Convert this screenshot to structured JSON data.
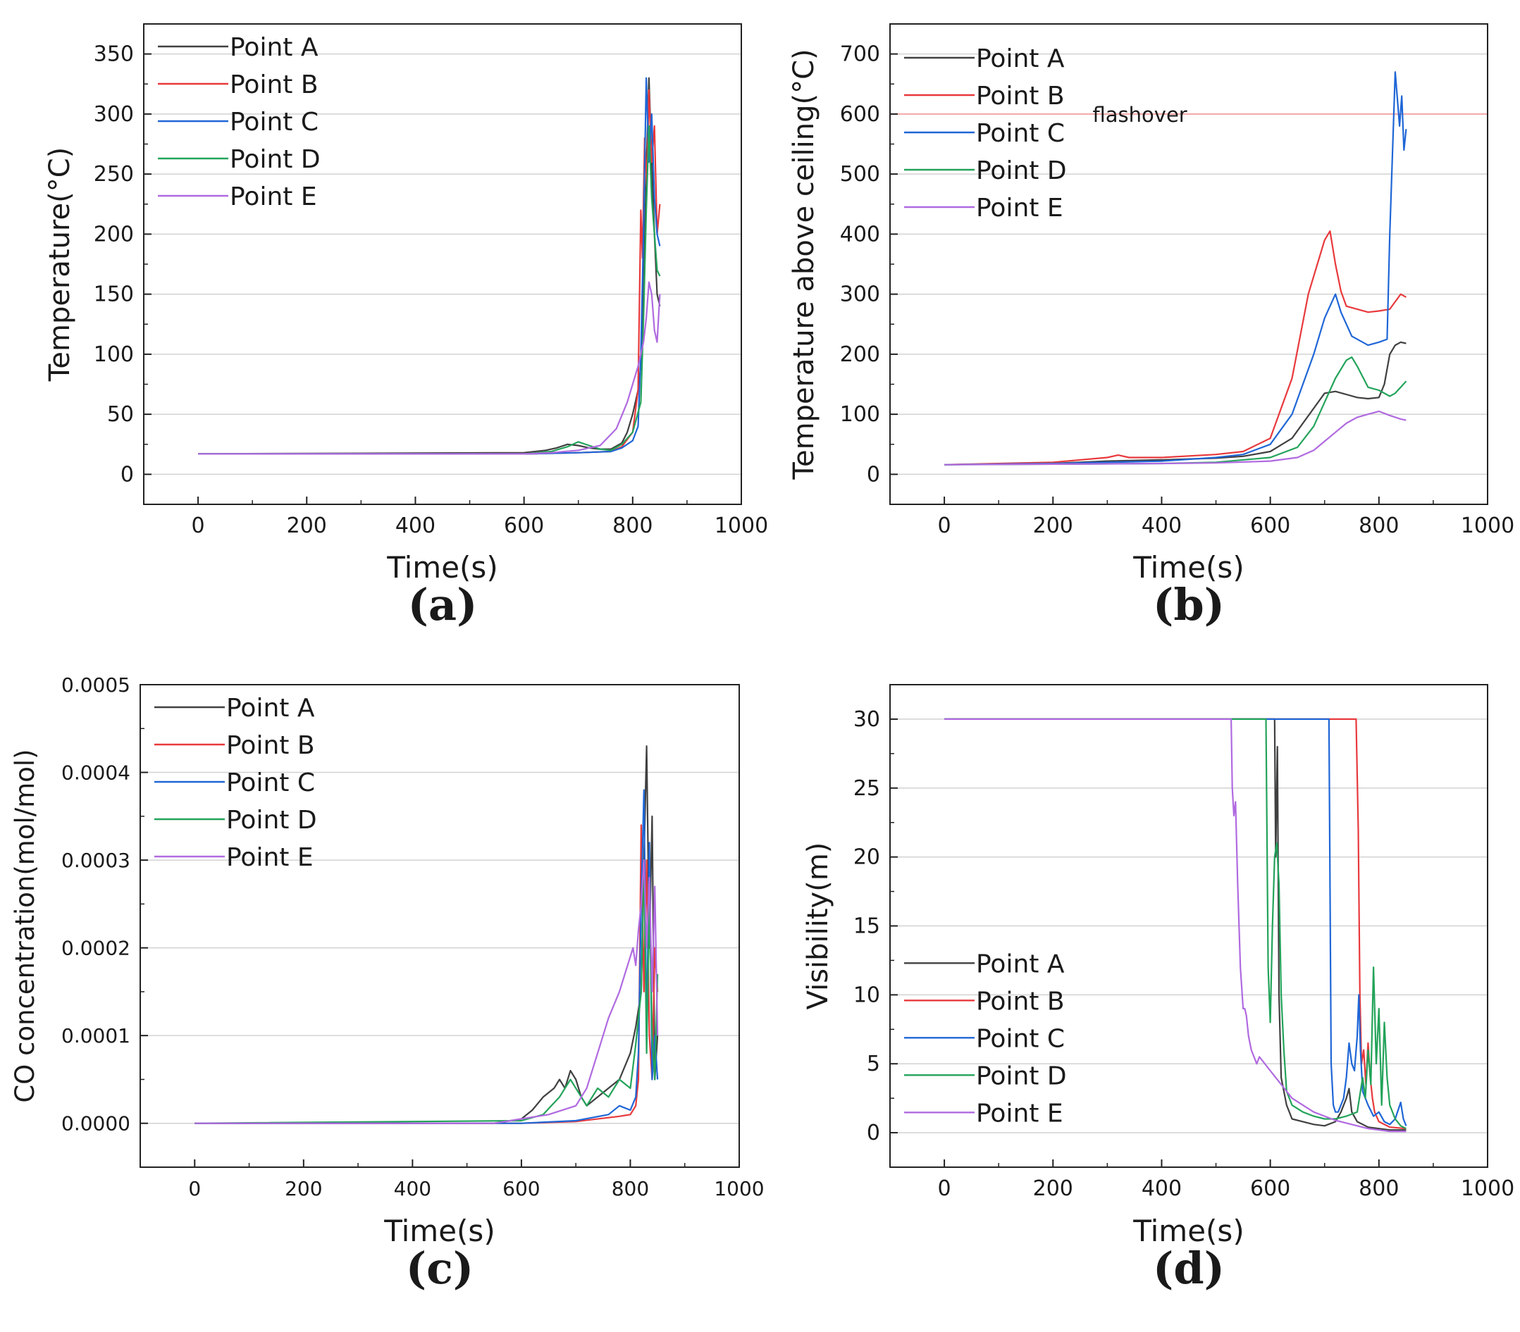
{
  "figure": {
    "colors": {
      "Point A": "#404040",
      "Point B": "#e8393c",
      "Point C": "#1f66d6",
      "Point D": "#23a35a",
      "Point E": "#b06ae0",
      "grid": "#d2d2d2",
      "flashover": "#f4a6a6"
    }
  },
  "chart_data": [
    {
      "id": "a",
      "type": "line",
      "panel_label": "(a)",
      "xlabel": "Time(s)",
      "ylabel": "Temperature(°C)",
      "xlim": [
        -100,
        1000
      ],
      "ylim": [
        -25,
        375
      ],
      "xticks": [
        0,
        200,
        400,
        600,
        800,
        1000
      ],
      "xtick_labels": [
        "0",
        "200",
        "400",
        "600",
        "800",
        "1000"
      ],
      "yticks": [
        0,
        50,
        100,
        150,
        200,
        250,
        300,
        350
      ],
      "ytick_labels": [
        "0",
        "50",
        "100",
        "150",
        "200",
        "250",
        "300",
        "350"
      ],
      "grid": true,
      "legend": "top-left",
      "series": [
        {
          "name": "Point A",
          "x": [
            0,
            600,
            640,
            660,
            680,
            700,
            720,
            740,
            760,
            780,
            790,
            800,
            810,
            815,
            820,
            825,
            830,
            835,
            840,
            845,
            850
          ],
          "y": [
            17,
            18,
            20,
            22,
            25,
            24,
            22,
            21,
            21,
            26,
            35,
            50,
            70,
            90,
            150,
            250,
            330,
            260,
            200,
            150,
            140
          ]
        },
        {
          "name": "Point B",
          "x": [
            0,
            600,
            700,
            760,
            780,
            800,
            810,
            815,
            818,
            822,
            826,
            830,
            835,
            840,
            845,
            850
          ],
          "y": [
            17,
            17,
            18,
            19,
            23,
            35,
            70,
            220,
            180,
            280,
            240,
            320,
            260,
            290,
            200,
            225
          ]
        },
        {
          "name": "Point C",
          "x": [
            0,
            600,
            700,
            760,
            780,
            800,
            810,
            815,
            820,
            825,
            830,
            835,
            840,
            845,
            850
          ],
          "y": [
            17,
            17,
            18,
            19,
            22,
            28,
            40,
            100,
            200,
            330,
            260,
            300,
            230,
            200,
            190
          ]
        },
        {
          "name": "Point D",
          "x": [
            0,
            600,
            650,
            680,
            700,
            720,
            740,
            760,
            780,
            800,
            815,
            820,
            825,
            830,
            835,
            840,
            845,
            850
          ],
          "y": [
            17,
            17,
            19,
            23,
            27,
            24,
            21,
            20,
            25,
            35,
            60,
            130,
            220,
            290,
            230,
            200,
            170,
            165
          ]
        },
        {
          "name": "Point E",
          "x": [
            0,
            600,
            650,
            700,
            740,
            770,
            790,
            810,
            820,
            825,
            830,
            835,
            840,
            845,
            850
          ],
          "y": [
            17,
            17,
            18,
            20,
            24,
            38,
            60,
            90,
            110,
            130,
            160,
            150,
            120,
            110,
            150
          ]
        }
      ]
    },
    {
      "id": "b",
      "type": "line",
      "panel_label": "(b)",
      "xlabel": "Time(s)",
      "ylabel": "Temperature above ceiling(°C)",
      "xlim": [
        -100,
        1000
      ],
      "ylim": [
        -50,
        750
      ],
      "xticks": [
        0,
        200,
        400,
        600,
        800,
        1000
      ],
      "xtick_labels": [
        "0",
        "200",
        "400",
        "600",
        "800",
        "1000"
      ],
      "yticks": [
        0,
        100,
        200,
        300,
        400,
        500,
        600,
        700
      ],
      "ytick_labels": [
        "0",
        "100",
        "200",
        "300",
        "400",
        "500",
        "600",
        "700"
      ],
      "grid": true,
      "legend": "top-left",
      "reference_line": {
        "y": 600,
        "label": "flashover"
      },
      "series": [
        {
          "name": "Point A",
          "x": [
            0,
            200,
            300,
            400,
            500,
            550,
            600,
            640,
            680,
            700,
            720,
            740,
            760,
            780,
            800,
            810,
            820,
            830,
            840,
            850
          ],
          "y": [
            16,
            18,
            22,
            24,
            27,
            30,
            38,
            60,
            110,
            135,
            138,
            133,
            128,
            126,
            128,
            150,
            200,
            215,
            220,
            218
          ]
        },
        {
          "name": "Point B",
          "x": [
            0,
            200,
            300,
            320,
            340,
            400,
            500,
            550,
            600,
            640,
            670,
            700,
            710,
            720,
            730,
            740,
            760,
            780,
            800,
            820,
            840,
            850
          ],
          "y": [
            16,
            20,
            28,
            32,
            28,
            28,
            33,
            38,
            60,
            160,
            300,
            390,
            405,
            350,
            305,
            280,
            275,
            270,
            272,
            275,
            300,
            295
          ]
        },
        {
          "name": "Point C",
          "x": [
            0,
            200,
            400,
            500,
            550,
            600,
            640,
            680,
            700,
            720,
            730,
            750,
            780,
            800,
            815,
            820,
            830,
            838,
            842,
            846,
            850
          ],
          "y": [
            16,
            18,
            22,
            28,
            33,
            50,
            100,
            200,
            260,
            300,
            270,
            230,
            215,
            220,
            225,
            400,
            670,
            580,
            630,
            540,
            575
          ]
        },
        {
          "name": "Point D",
          "x": [
            0,
            200,
            400,
            500,
            600,
            650,
            680,
            700,
            720,
            740,
            750,
            760,
            780,
            800,
            820,
            830,
            840,
            850
          ],
          "y": [
            16,
            17,
            18,
            20,
            28,
            45,
            80,
            120,
            160,
            190,
            195,
            180,
            145,
            140,
            130,
            135,
            145,
            155
          ]
        },
        {
          "name": "Point E",
          "x": [
            0,
            200,
            400,
            500,
            600,
            650,
            680,
            700,
            720,
            740,
            760,
            780,
            800,
            820,
            840,
            850
          ],
          "y": [
            16,
            17,
            18,
            19,
            22,
            28,
            40,
            55,
            70,
            85,
            95,
            100,
            105,
            98,
            92,
            90
          ]
        }
      ]
    },
    {
      "id": "c",
      "type": "line",
      "panel_label": "(c)",
      "xlabel": "Time(s)",
      "ylabel": "CO concentration(mol/mol)",
      "xlim": [
        -100,
        1000
      ],
      "ylim": [
        -5e-05,
        0.0005
      ],
      "xticks": [
        0,
        200,
        400,
        600,
        800,
        1000
      ],
      "xtick_labels": [
        "0",
        "200",
        "400",
        "600",
        "800",
        "1000"
      ],
      "yticks": [
        0,
        0.0001,
        0.0002,
        0.0003,
        0.0004,
        0.0005
      ],
      "ytick_labels": [
        "0.0000",
        "0.0001",
        "0.0002",
        "0.0003",
        "0.0004",
        "0.0005"
      ],
      "grid": true,
      "legend": "top-left",
      "series": [
        {
          "name": "Point A",
          "x": [
            0,
            550,
            600,
            620,
            640,
            660,
            670,
            680,
            690,
            700,
            710,
            720,
            740,
            760,
            780,
            800,
            810,
            820,
            825,
            830,
            835,
            840,
            845,
            850
          ],
          "y": [
            0,
            0,
            5e-06,
            1.5e-05,
            3e-05,
            4e-05,
            5e-05,
            4e-05,
            6e-05,
            5e-05,
            3e-05,
            2e-05,
            3e-05,
            4e-05,
            5e-05,
            8e-05,
            0.00011,
            0.00015,
            0.0003,
            0.00043,
            0.0002,
            0.00035,
            5e-05,
            0.0001
          ]
        },
        {
          "name": "Point B",
          "x": [
            0,
            600,
            700,
            780,
            800,
            810,
            815,
            820,
            825,
            830,
            835,
            840,
            845,
            850
          ],
          "y": [
            0,
            0,
            2e-06,
            8e-06,
            1e-05,
            2e-05,
            5e-05,
            0.00034,
            0.00015,
            0.0003,
            0.0001,
            5e-05,
            0.0002,
            0.00015
          ]
        },
        {
          "name": "Point C",
          "x": [
            0,
            600,
            700,
            760,
            780,
            800,
            810,
            815,
            820,
            825,
            830,
            835,
            840,
            845,
            850
          ],
          "y": [
            0,
            0,
            3e-06,
            1e-05,
            2e-05,
            1.5e-05,
            3e-05,
            8e-05,
            0.00025,
            0.00038,
            0.0001,
            0.00032,
            5e-05,
            0.0001,
            5e-05
          ]
        },
        {
          "name": "Point D",
          "x": [
            0,
            600,
            640,
            670,
            690,
            700,
            710,
            720,
            740,
            760,
            780,
            800,
            810,
            820,
            825,
            830,
            835,
            840,
            845,
            850
          ],
          "y": [
            0,
            3e-06,
            1e-05,
            3e-05,
            5e-05,
            4e-05,
            3e-05,
            2e-05,
            4e-05,
            3e-05,
            5e-05,
            4e-05,
            9e-05,
            0.00015,
            0.0003,
            8e-05,
            0.00025,
            0.0001,
            5e-05,
            0.00017
          ]
        },
        {
          "name": "Point E",
          "x": [
            0,
            550,
            600,
            650,
            700,
            720,
            740,
            760,
            780,
            790,
            800,
            805,
            810,
            815,
            820,
            825,
            830,
            835,
            840,
            845,
            850
          ],
          "y": [
            0,
            0,
            5e-06,
            1e-05,
            2e-05,
            4e-05,
            8e-05,
            0.00012,
            0.00015,
            0.00017,
            0.00019,
            0.0002,
            0.00018,
            0.00022,
            0.00025,
            0.0003,
            0.0002,
            0.00028,
            0.00015,
            0.00027,
            0.0001
          ]
        }
      ]
    },
    {
      "id": "d",
      "type": "line",
      "panel_label": "(d)",
      "xlabel": "Time(s)",
      "ylabel": "Visibility(m)",
      "xlim": [
        -100,
        1000
      ],
      "ylim": [
        -2.5,
        32.5
      ],
      "xticks": [
        0,
        200,
        400,
        600,
        800,
        1000
      ],
      "xtick_labels": [
        "0",
        "200",
        "400",
        "600",
        "800",
        "1000"
      ],
      "yticks": [
        0,
        5,
        10,
        15,
        20,
        25,
        30
      ],
      "ytick_labels": [
        "0",
        "5",
        "10",
        "15",
        "20",
        "25",
        "30"
      ],
      "grid": true,
      "legend": "bottom-left",
      "series": [
        {
          "name": "Point A",
          "x": [
            0,
            608,
            610,
            613,
            616,
            620,
            630,
            640,
            660,
            680,
            700,
            720,
            730,
            740,
            745,
            750,
            760,
            780,
            800,
            820,
            850
          ],
          "y": [
            30,
            30,
            20,
            28,
            10,
            4,
            2,
            1,
            0.8,
            0.6,
            0.5,
            0.8,
            1.5,
            2.5,
            3.2,
            1.5,
            0.8,
            0.4,
            0.3,
            0.2,
            0.2
          ]
        },
        {
          "name": "Point B",
          "x": [
            0,
            758,
            762,
            765,
            768,
            772,
            776,
            780,
            784,
            788,
            792,
            800,
            820,
            850
          ],
          "y": [
            30,
            30,
            22,
            10,
            5,
            6,
            3.5,
            6.5,
            4,
            2.5,
            1.5,
            0.8,
            0.4,
            0.3
          ]
        },
        {
          "name": "Point C",
          "x": [
            0,
            708,
            712,
            716,
            720,
            725,
            730,
            735,
            740,
            745,
            750,
            755,
            760,
            763,
            766,
            770,
            780,
            790,
            800,
            810,
            820,
            830,
            840,
            845,
            850
          ],
          "y": [
            30,
            30,
            5,
            2,
            1.5,
            1.5,
            2,
            2.5,
            4,
            6.5,
            5,
            4.5,
            7,
            10,
            6,
            3,
            2,
            1.2,
            1.5,
            0.8,
            0.6,
            1,
            2.2,
            1,
            0.5
          ]
        },
        {
          "name": "Point D",
          "x": [
            0,
            592,
            596,
            600,
            604,
            608,
            612,
            616,
            620,
            625,
            630,
            640,
            660,
            680,
            700,
            720,
            740,
            760,
            770,
            775,
            780,
            785,
            790,
            795,
            800,
            805,
            810,
            815,
            820,
            830,
            840,
            850
          ],
          "y": [
            30,
            30,
            12,
            8,
            15,
            20,
            21,
            18,
            10,
            6,
            3,
            2,
            1.5,
            1.2,
            1,
            1,
            1.2,
            1.5,
            4,
            2.5,
            6,
            3.5,
            12,
            5,
            9,
            2,
            8,
            4,
            2,
            1,
            0.5,
            0.3
          ]
        },
        {
          "name": "Point E",
          "x": [
            0,
            528,
            530,
            533,
            536,
            540,
            545,
            550,
            553,
            556,
            560,
            565,
            570,
            575,
            580,
            590,
            600,
            620,
            640,
            660,
            680,
            700,
            720,
            740,
            760,
            780,
            800,
            820,
            850
          ],
          "y": [
            30,
            30,
            25,
            23,
            24,
            18,
            12,
            9,
            9,
            8.5,
            7,
            6,
            5.5,
            5,
            5.5,
            5,
            4.5,
            3.5,
            2.5,
            2,
            1.5,
            1.2,
            0.9,
            0.7,
            0.5,
            0.3,
            0.2,
            0.1,
            0.1
          ]
        }
      ]
    }
  ]
}
